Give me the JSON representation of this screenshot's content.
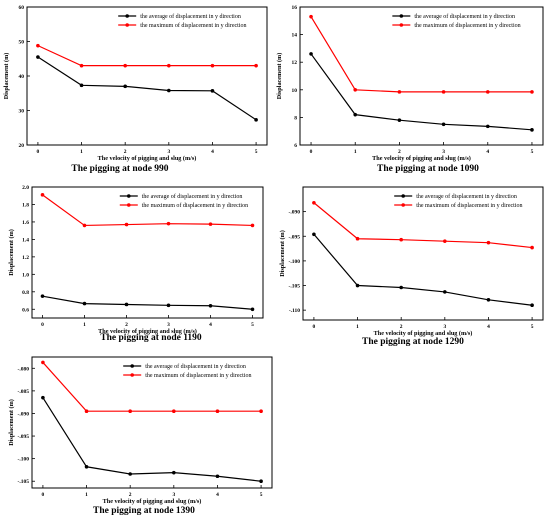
{
  "chart_data": [
    {
      "type": "line",
      "caption": "The pigging at node 990",
      "xlabel": "The velocity of pigging and slug (m/s)",
      "ylabel": "Displacement (m)",
      "x": [
        0,
        1,
        2,
        3,
        4,
        5
      ],
      "xlim": [
        -0.25,
        5.25
      ],
      "ylim": [
        20,
        60
      ],
      "xticks": [
        "0",
        "1",
        "2",
        "3",
        "4",
        "5"
      ],
      "yticks": [
        20,
        30,
        40,
        50,
        60
      ],
      "ytick_labels": [
        "20",
        "30",
        "40",
        "50",
        "60"
      ],
      "series": [
        {
          "name": "the average of displacement in y direction",
          "color": "#000000",
          "values": [
            45.5,
            37.3,
            37.0,
            35.8,
            35.7,
            27.3
          ]
        },
        {
          "name": "the maximum of displacement in y direction",
          "color": "#ff0000",
          "values": [
            48.8,
            43.0,
            43.0,
            43.0,
            43.0,
            43.0
          ]
        }
      ]
    },
    {
      "type": "line",
      "caption": "The pigging at node 1090",
      "xlabel": "The velocity of pigging and slug (m/s)",
      "ylabel": "Displacement (m)",
      "x": [
        0,
        1,
        2,
        3,
        4,
        5
      ],
      "xlim": [
        -0.25,
        5.25
      ],
      "ylim": [
        6,
        16
      ],
      "xticks": [
        "0",
        "1",
        "2",
        "3",
        "4",
        "5"
      ],
      "yticks": [
        6,
        8,
        10,
        12,
        14,
        16
      ],
      "ytick_labels": [
        "6",
        "8",
        "10",
        "12",
        "14",
        "16"
      ],
      "series": [
        {
          "name": "the average of displacement in y direction",
          "color": "#000000",
          "values": [
            12.6,
            8.2,
            7.8,
            7.5,
            7.35,
            7.1
          ]
        },
        {
          "name": "the maximum of displacement in y direction",
          "color": "#ff0000",
          "values": [
            15.3,
            10.0,
            9.85,
            9.85,
            9.85,
            9.85
          ]
        }
      ]
    },
    {
      "type": "line",
      "caption": "The pigging at node 1190",
      "xlabel": "The velocity of pigging and slug (m/s)",
      "ylabel": "Displacement (m)",
      "x": [
        0,
        1,
        2,
        3,
        4,
        5
      ],
      "xlim": [
        -0.25,
        5.25
      ],
      "ylim": [
        0.5,
        2.0
      ],
      "xticks": [
        "0",
        "1",
        "2",
        "3",
        "4",
        "5"
      ],
      "yticks": [
        0.6,
        0.8,
        1.0,
        1.2,
        1.4,
        1.6,
        1.8,
        2.0
      ],
      "ytick_labels": [
        "0.6",
        "0.8",
        "1.0",
        "1.2",
        "1.4",
        "1.6",
        "1.8",
        "2.0"
      ],
      "series": [
        {
          "name": "the average of displacement in y direction",
          "color": "#000000",
          "values": [
            0.75,
            0.665,
            0.655,
            0.645,
            0.64,
            0.6
          ]
        },
        {
          "name": "the maximum of displacement in y direction",
          "color": "#ff0000",
          "values": [
            1.91,
            1.56,
            1.57,
            1.58,
            1.575,
            1.56
          ]
        }
      ]
    },
    {
      "type": "line",
      "caption": "The pigging at node 1290",
      "xlabel": "The velocity of pigging and slug (m/s)",
      "ylabel": "Displacement (m)",
      "x": [
        0,
        1,
        2,
        3,
        4,
        5
      ],
      "xlim": [
        -0.25,
        5.25
      ],
      "ylim": [
        -0.112,
        -0.085
      ],
      "xticks": [
        "0",
        "1",
        "2",
        "3",
        "4",
        "5"
      ],
      "yticks": [
        -0.11,
        -0.105,
        -0.1,
        -0.095,
        -0.09
      ],
      "ytick_labels": [
        "-.110",
        "-.105",
        "-.100",
        "-.095",
        "-.090"
      ],
      "series": [
        {
          "name": "the average of displacement in y direction",
          "color": "#000000",
          "values": [
            -0.0946,
            -0.105,
            -0.1054,
            -0.1063,
            -0.1079,
            -0.109
          ]
        },
        {
          "name": "the maximum of displacement in y direction",
          "color": "#ff0000",
          "values": [
            -0.0882,
            -0.0955,
            -0.0957,
            -0.096,
            -0.0963,
            -0.0973
          ]
        }
      ]
    },
    {
      "type": "line",
      "caption": "The pigging at node 1390",
      "xlabel": "The velocity of pigging and slug (m/s)",
      "ylabel": "Displacement (m)",
      "x": [
        0,
        1,
        2,
        3,
        4,
        5
      ],
      "xlim": [
        -0.25,
        5.25
      ],
      "ylim": [
        -0.1065,
        -0.0775
      ],
      "xticks": [
        "0",
        "1",
        "2",
        "3",
        "4",
        "5"
      ],
      "yticks": [
        -0.105,
        -0.1,
        -0.095,
        -0.09,
        -0.085,
        -0.08
      ],
      "ytick_labels": [
        "-.105",
        "-.100",
        "-.095",
        "-.090",
        "-.085",
        "-.080"
      ],
      "series": [
        {
          "name": "the average of displacement in y direction",
          "color": "#000000",
          "values": [
            -0.0865,
            -0.1018,
            -0.1034,
            -0.1031,
            -0.1039,
            -0.105
          ]
        },
        {
          "name": "the maximum of displacement in y direction",
          "color": "#ff0000",
          "values": [
            -0.0787,
            -0.0895,
            -0.0895,
            -0.0895,
            -0.0895,
            -0.0895
          ]
        }
      ]
    }
  ]
}
